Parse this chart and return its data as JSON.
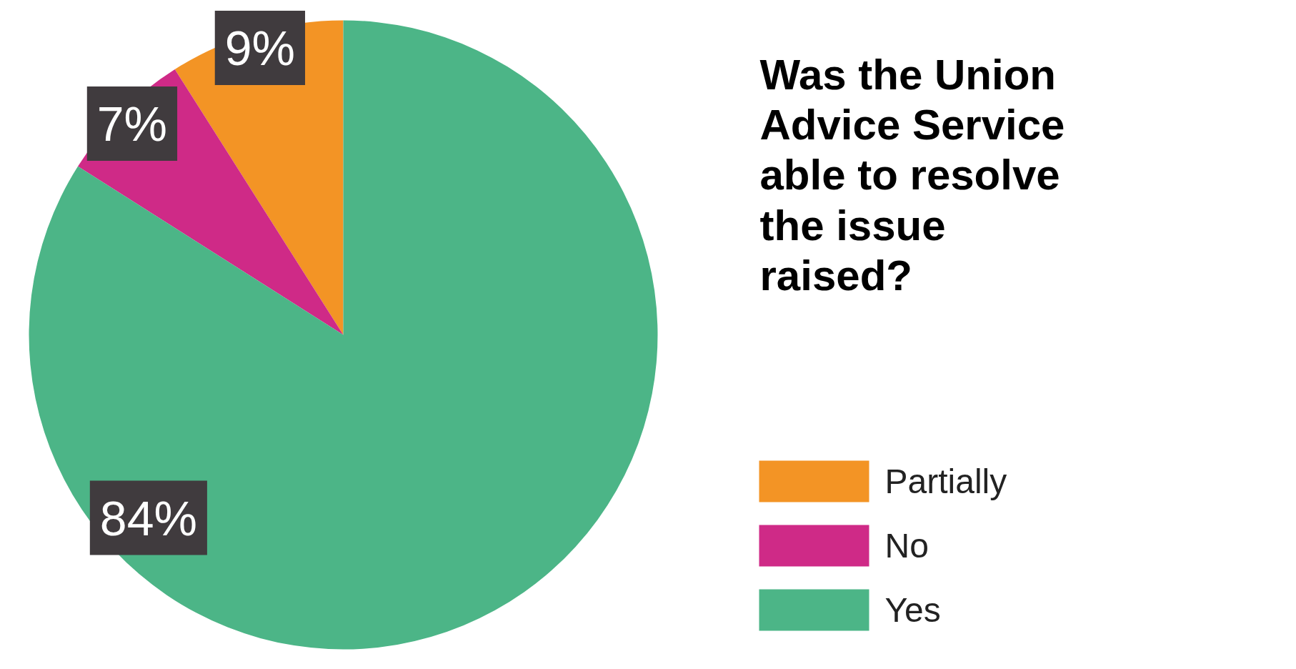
{
  "chart_data": {
    "type": "pie",
    "title": "Was the Union Advice Service able to resolve the issue raised?",
    "categories": [
      "Partially",
      "No",
      "Yes"
    ],
    "values": [
      9,
      7,
      84
    ],
    "colors": [
      "#f39425",
      "#cf2a87",
      "#4cb587"
    ],
    "value_labels": [
      "9%",
      "7%",
      "84%"
    ],
    "legend": "right"
  }
}
